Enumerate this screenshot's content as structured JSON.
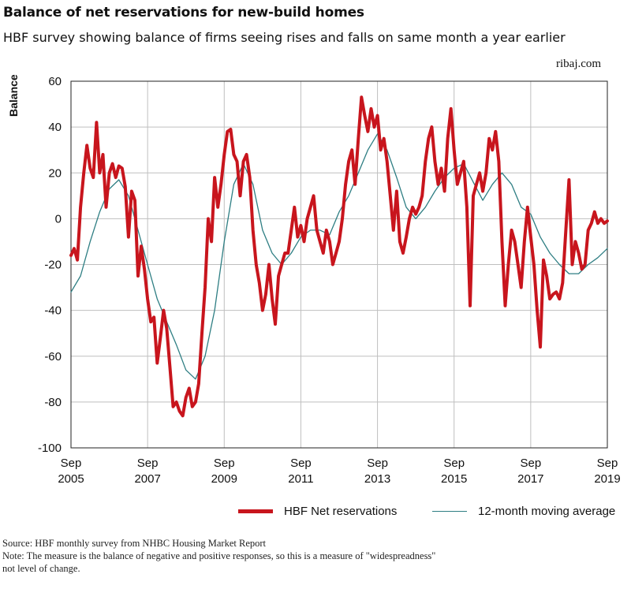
{
  "header": {
    "title": "Balance of net reservations for new-build homes",
    "subtitle": "HBF survey showing balance of firms seeing rises and falls on same month a year earlier",
    "watermark": "ribaj.com"
  },
  "footer": {
    "source": "Source: HBF monthly survey from NHBC Housing Market Report",
    "note_line1": "Note: The measure is the balance of negative and positive responses, so this is a measure of \"widespreadness\"",
    "note_line2": "not level of change."
  },
  "colors": {
    "net": "#c8151d",
    "avg": "#2e7e83",
    "grid": "#bfbfbf"
  },
  "chart_data": {
    "type": "line",
    "title": "Balance of net reservations for new-build homes",
    "ylabel": "Balance",
    "ylim": [
      -100,
      60
    ],
    "yticks": [
      60,
      40,
      20,
      0,
      -20,
      -40,
      -60,
      -80,
      -100
    ],
    "xlim": [
      "2005-09",
      "2019-09"
    ],
    "xticks": [
      {
        "month": "Sep",
        "year": "2005"
      },
      {
        "month": "Sep",
        "year": "2007"
      },
      {
        "month": "Sep",
        "year": "2009"
      },
      {
        "month": "Sep",
        "year": "2011"
      },
      {
        "month": "Sep",
        "year": "2013"
      },
      {
        "month": "Sep",
        "year": "2015"
      },
      {
        "month": "Sep",
        "year": "2017"
      },
      {
        "month": "Sep",
        "year": "2019"
      }
    ],
    "grid": true,
    "legend_position": "bottom",
    "series": [
      {
        "name": "HBF Net reservations",
        "points": [
          [
            "2005-09",
            -16
          ],
          [
            "2005-10",
            -13
          ],
          [
            "2005-11",
            -18
          ],
          [
            "2005-12",
            5
          ],
          [
            "2006-01",
            20
          ],
          [
            "2006-02",
            32
          ],
          [
            "2006-03",
            22
          ],
          [
            "2006-04",
            18
          ],
          [
            "2006-05",
            42
          ],
          [
            "2006-06",
            20
          ],
          [
            "2006-07",
            28
          ],
          [
            "2006-08",
            5
          ],
          [
            "2006-09",
            20
          ],
          [
            "2006-10",
            24
          ],
          [
            "2006-11",
            18
          ],
          [
            "2006-12",
            23
          ],
          [
            "2007-01",
            22
          ],
          [
            "2007-02",
            14
          ],
          [
            "2007-03",
            -8
          ],
          [
            "2007-04",
            12
          ],
          [
            "2007-05",
            8
          ],
          [
            "2007-06",
            -25
          ],
          [
            "2007-07",
            -12
          ],
          [
            "2007-08",
            -22
          ],
          [
            "2007-09",
            -35
          ],
          [
            "2007-10",
            -45
          ],
          [
            "2007-11",
            -43
          ],
          [
            "2007-12",
            -63
          ],
          [
            "2008-01",
            -52
          ],
          [
            "2008-02",
            -40
          ],
          [
            "2008-03",
            -48
          ],
          [
            "2008-04",
            -65
          ],
          [
            "2008-05",
            -82
          ],
          [
            "2008-06",
            -80
          ],
          [
            "2008-07",
            -84
          ],
          [
            "2008-08",
            -86
          ],
          [
            "2008-09",
            -78
          ],
          [
            "2008-10",
            -74
          ],
          [
            "2008-11",
            -82
          ],
          [
            "2008-12",
            -80
          ],
          [
            "2009-01",
            -72
          ],
          [
            "2009-02",
            -50
          ],
          [
            "2009-03",
            -30
          ],
          [
            "2009-04",
            0
          ],
          [
            "2009-05",
            -10
          ],
          [
            "2009-06",
            18
          ],
          [
            "2009-07",
            5
          ],
          [
            "2009-08",
            15
          ],
          [
            "2009-09",
            28
          ],
          [
            "2009-10",
            38
          ],
          [
            "2009-11",
            39
          ],
          [
            "2009-12",
            28
          ],
          [
            "2010-01",
            25
          ],
          [
            "2010-02",
            10
          ],
          [
            "2010-03",
            25
          ],
          [
            "2010-04",
            28
          ],
          [
            "2010-05",
            18
          ],
          [
            "2010-06",
            -5
          ],
          [
            "2010-07",
            -20
          ],
          [
            "2010-08",
            -28
          ],
          [
            "2010-09",
            -40
          ],
          [
            "2010-10",
            -33
          ],
          [
            "2010-11",
            -20
          ],
          [
            "2010-12",
            -35
          ],
          [
            "2011-01",
            -46
          ],
          [
            "2011-02",
            -25
          ],
          [
            "2011-03",
            -20
          ],
          [
            "2011-04",
            -15
          ],
          [
            "2011-05",
            -15
          ],
          [
            "2011-06",
            -5
          ],
          [
            "2011-07",
            5
          ],
          [
            "2011-08",
            -8
          ],
          [
            "2011-09",
            -3
          ],
          [
            "2011-10",
            -10
          ],
          [
            "2011-11",
            0
          ],
          [
            "2011-12",
            5
          ],
          [
            "2012-01",
            10
          ],
          [
            "2012-02",
            -5
          ],
          [
            "2012-03",
            -10
          ],
          [
            "2012-04",
            -15
          ],
          [
            "2012-05",
            -5
          ],
          [
            "2012-06",
            -10
          ],
          [
            "2012-07",
            -20
          ],
          [
            "2012-08",
            -15
          ],
          [
            "2012-09",
            -10
          ],
          [
            "2012-10",
            0
          ],
          [
            "2012-11",
            15
          ],
          [
            "2012-12",
            25
          ],
          [
            "2013-01",
            30
          ],
          [
            "2013-02",
            15
          ],
          [
            "2013-03",
            35
          ],
          [
            "2013-04",
            53
          ],
          [
            "2013-05",
            45
          ],
          [
            "2013-06",
            38
          ],
          [
            "2013-07",
            48
          ],
          [
            "2013-08",
            40
          ],
          [
            "2013-09",
            45
          ],
          [
            "2013-10",
            30
          ],
          [
            "2013-11",
            35
          ],
          [
            "2013-12",
            25
          ],
          [
            "2014-01",
            10
          ],
          [
            "2014-02",
            -5
          ],
          [
            "2014-03",
            12
          ],
          [
            "2014-04",
            -10
          ],
          [
            "2014-05",
            -15
          ],
          [
            "2014-06",
            -8
          ],
          [
            "2014-07",
            0
          ],
          [
            "2014-08",
            5
          ],
          [
            "2014-09",
            2
          ],
          [
            "2014-10",
            5
          ],
          [
            "2014-11",
            10
          ],
          [
            "2014-12",
            25
          ],
          [
            "2015-01",
            35
          ],
          [
            "2015-02",
            40
          ],
          [
            "2015-03",
            25
          ],
          [
            "2015-04",
            15
          ],
          [
            "2015-05",
            22
          ],
          [
            "2015-06",
            12
          ],
          [
            "2015-07",
            35
          ],
          [
            "2015-08",
            48
          ],
          [
            "2015-09",
            30
          ],
          [
            "2015-10",
            15
          ],
          [
            "2015-11",
            20
          ],
          [
            "2015-12",
            25
          ],
          [
            "2016-01",
            5
          ],
          [
            "2016-02",
            -38
          ],
          [
            "2016-03",
            10
          ],
          [
            "2016-04",
            15
          ],
          [
            "2016-05",
            20
          ],
          [
            "2016-06",
            12
          ],
          [
            "2016-07",
            20
          ],
          [
            "2016-08",
            35
          ],
          [
            "2016-09",
            30
          ],
          [
            "2016-10",
            38
          ],
          [
            "2016-11",
            25
          ],
          [
            "2016-12",
            -10
          ],
          [
            "2017-01",
            -38
          ],
          [
            "2017-02",
            -20
          ],
          [
            "2017-03",
            -5
          ],
          [
            "2017-04",
            -10
          ],
          [
            "2017-05",
            -20
          ],
          [
            "2017-06",
            -30
          ],
          [
            "2017-07",
            -10
          ],
          [
            "2017-08",
            5
          ],
          [
            "2017-09",
            -8
          ],
          [
            "2017-10",
            -20
          ],
          [
            "2017-11",
            -40
          ],
          [
            "2017-12",
            -56
          ],
          [
            "2018-01",
            -18
          ],
          [
            "2018-02",
            -25
          ],
          [
            "2018-03",
            -35
          ],
          [
            "2018-04",
            -33
          ],
          [
            "2018-05",
            -32
          ],
          [
            "2018-06",
            -35
          ],
          [
            "2018-07",
            -28
          ],
          [
            "2018-08",
            -5
          ],
          [
            "2018-09",
            17
          ],
          [
            "2018-10",
            -20
          ],
          [
            "2018-11",
            -10
          ],
          [
            "2018-12",
            -15
          ],
          [
            "2019-01",
            -22
          ],
          [
            "2019-02",
            -20
          ],
          [
            "2019-03",
            -5
          ],
          [
            "2019-04",
            -2
          ],
          [
            "2019-05",
            3
          ],
          [
            "2019-06",
            -2
          ],
          [
            "2019-07",
            0
          ],
          [
            "2019-08",
            -2
          ],
          [
            "2019-09",
            -1
          ]
        ]
      },
      {
        "name": "12-month moving average",
        "points": [
          [
            "2005-09",
            -32
          ],
          [
            "2005-12",
            -25
          ],
          [
            "2006-03",
            -10
          ],
          [
            "2006-06",
            3
          ],
          [
            "2006-09",
            13
          ],
          [
            "2006-12",
            17
          ],
          [
            "2007-03",
            10
          ],
          [
            "2007-06",
            -5
          ],
          [
            "2007-09",
            -20
          ],
          [
            "2007-12",
            -35
          ],
          [
            "2008-03",
            -45
          ],
          [
            "2008-06",
            -55
          ],
          [
            "2008-09",
            -66
          ],
          [
            "2008-12",
            -70
          ],
          [
            "2009-03",
            -60
          ],
          [
            "2009-06",
            -40
          ],
          [
            "2009-09",
            -10
          ],
          [
            "2009-12",
            15
          ],
          [
            "2010-03",
            24
          ],
          [
            "2010-06",
            15
          ],
          [
            "2010-09",
            -5
          ],
          [
            "2010-12",
            -15
          ],
          [
            "2011-03",
            -20
          ],
          [
            "2011-06",
            -15
          ],
          [
            "2011-09",
            -8
          ],
          [
            "2011-12",
            -5
          ],
          [
            "2012-03",
            -5
          ],
          [
            "2012-06",
            -7
          ],
          [
            "2012-09",
            3
          ],
          [
            "2012-12",
            10
          ],
          [
            "2013-03",
            20
          ],
          [
            "2013-06",
            30
          ],
          [
            "2013-09",
            37
          ],
          [
            "2013-12",
            30
          ],
          [
            "2014-03",
            18
          ],
          [
            "2014-06",
            5
          ],
          [
            "2014-09",
            0
          ],
          [
            "2014-12",
            5
          ],
          [
            "2015-03",
            12
          ],
          [
            "2015-06",
            18
          ],
          [
            "2015-09",
            22
          ],
          [
            "2015-12",
            24
          ],
          [
            "2016-03",
            16
          ],
          [
            "2016-06",
            8
          ],
          [
            "2016-09",
            15
          ],
          [
            "2016-12",
            20
          ],
          [
            "2017-03",
            15
          ],
          [
            "2017-06",
            5
          ],
          [
            "2017-09",
            2
          ],
          [
            "2017-12",
            -8
          ],
          [
            "2018-03",
            -15
          ],
          [
            "2018-06",
            -20
          ],
          [
            "2018-09",
            -24
          ],
          [
            "2018-12",
            -24
          ],
          [
            "2019-03",
            -20
          ],
          [
            "2019-06",
            -17
          ],
          [
            "2019-09",
            -13
          ]
        ]
      }
    ]
  }
}
